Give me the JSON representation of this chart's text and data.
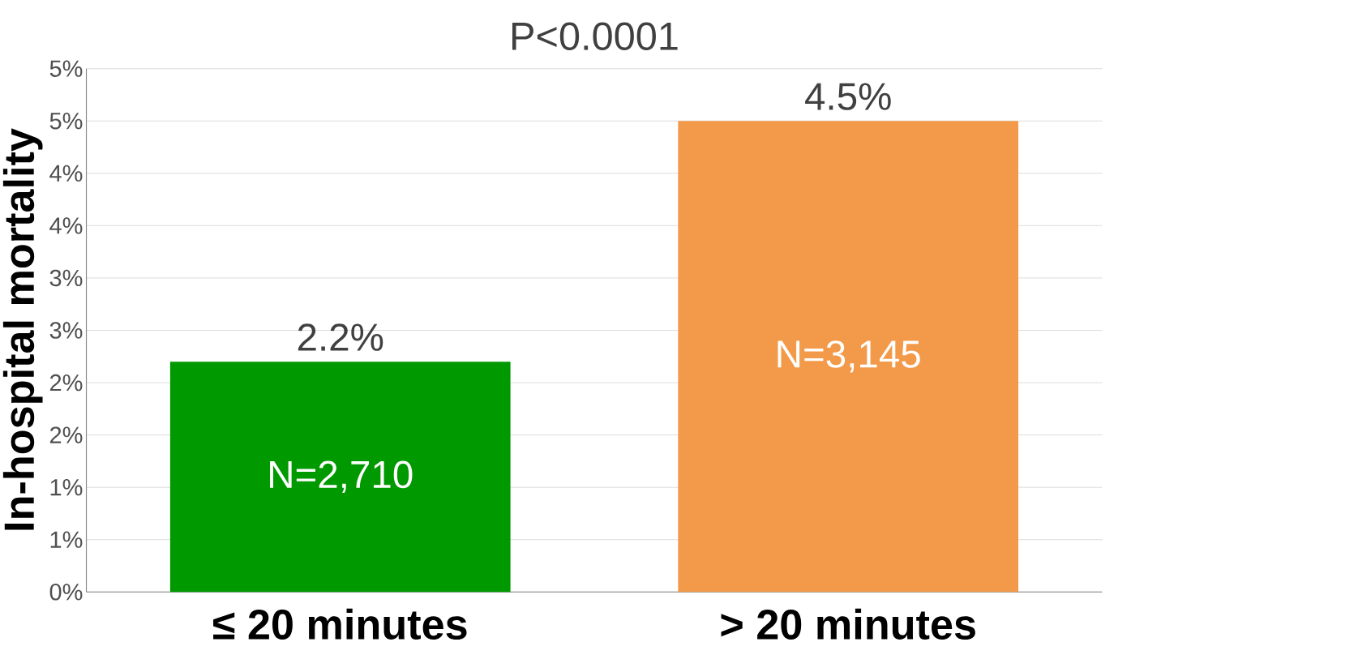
{
  "chart_data": {
    "type": "bar",
    "title": "P<0.0001",
    "ylabel": "In-hospital mortality",
    "categories": [
      "≤ 20 minutes",
      "> 20 minutes"
    ],
    "values": [
      2.2,
      4.5
    ],
    "value_labels": [
      "2.2%",
      "4.5%"
    ],
    "colors": [
      "#009900",
      "#f29a4a"
    ],
    "annotations": [
      "N=2,710",
      "N=3,145"
    ],
    "ylim": [
      0,
      5
    ],
    "yticks": [
      {
        "value": 0,
        "label": "0%"
      },
      {
        "value": 0.5,
        "label": "1%"
      },
      {
        "value": 1,
        "label": "1%"
      },
      {
        "value": 1.5,
        "label": "2%"
      },
      {
        "value": 2,
        "label": "2%"
      },
      {
        "value": 2.5,
        "label": "3%"
      },
      {
        "value": 3,
        "label": "3%"
      },
      {
        "value": 3.5,
        "label": "4%"
      },
      {
        "value": 4,
        "label": "4%"
      },
      {
        "value": 4.5,
        "label": "5%"
      },
      {
        "value": 5,
        "label": "5%"
      }
    ],
    "grid": "y"
  }
}
